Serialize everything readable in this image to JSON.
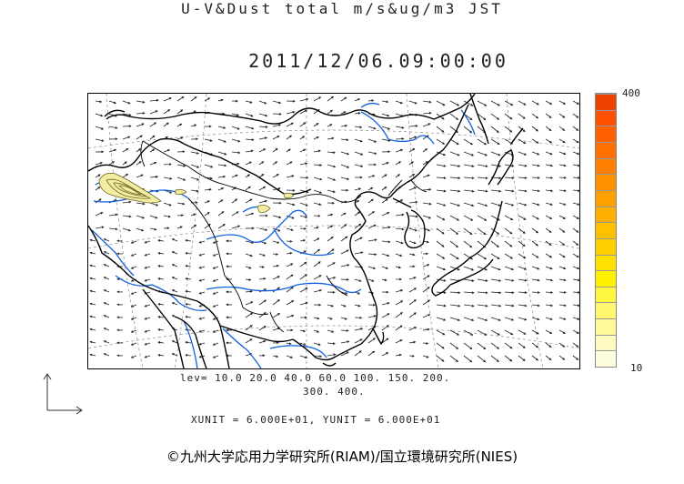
{
  "title_line1": "U-V&Dust total m/s&ug/m3 JST",
  "title_line2": "2011/12/06.09:00:00",
  "colorbar": {
    "max_label": "400",
    "min_label": "10",
    "colors": [
      "#fffde0",
      "#fffbc0",
      "#fff99a",
      "#fff770",
      "#fff640",
      "#fff200",
      "#ffe000",
      "#ffd000",
      "#ffc000",
      "#ffb000",
      "#ffa000",
      "#ff9000",
      "#ff8000",
      "#ff7000",
      "#ff6000",
      "#ff5000",
      "#f04000"
    ]
  },
  "levels_line1": "lev= 10.0 20.0 40.0 60.0 100. 150. 200.",
  "levels_line2": "300. 400.",
  "units_text": "XUNIT = 6.000E+01, YUNIT = 6.000E+01",
  "credit": "©九州大学応用力学研究所(RIAM)/国立環境研究所(NIES)",
  "colors": {
    "coast": "#000000",
    "river": "#1060e0",
    "grid": "#888888",
    "vector": "#222222",
    "dust_fill": "#f4eca0",
    "dust_line": "#6e6a2a"
  }
}
